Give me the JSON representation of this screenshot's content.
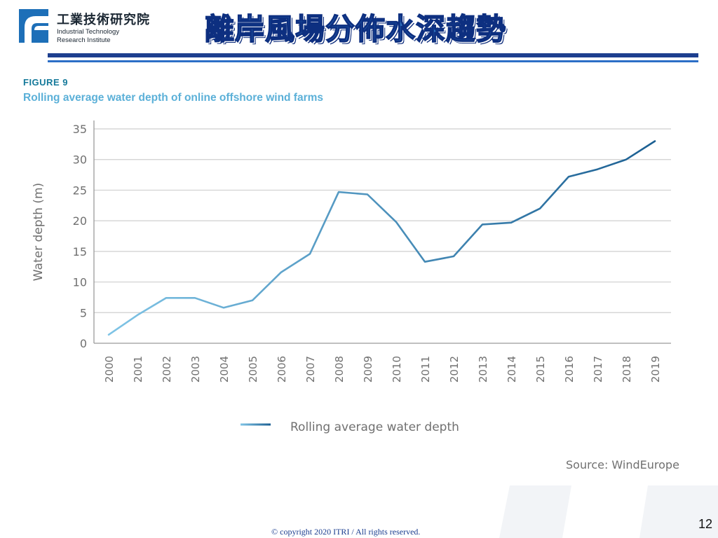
{
  "header": {
    "logo": {
      "name_zh": "工業技術研究院",
      "name_en_line1": "Industrial Technology",
      "name_en_line2": "Research Institute"
    },
    "title": "離岸風場分佈水深趨勢",
    "title_color": "#2f74c0",
    "rule_color": "#1d3f8f"
  },
  "figure": {
    "label": "FIGURE 9",
    "title": "Rolling average water depth of online offshore wind farms",
    "source": "Source: WindEurope"
  },
  "chart_data": {
    "type": "line",
    "x": [
      "2000",
      "2001",
      "2002",
      "2003",
      "2004",
      "2005",
      "2006",
      "2007",
      "2008",
      "2009",
      "2010",
      "2011",
      "2012",
      "2013",
      "2014",
      "2015",
      "2016",
      "2017",
      "2018",
      "2019"
    ],
    "series": [
      {
        "name": "Rolling average water depth",
        "values": [
          1.4,
          4.6,
          7.4,
          7.4,
          5.8,
          7.0,
          11.6,
          14.6,
          24.7,
          24.3,
          19.8,
          13.3,
          14.2,
          19.4,
          19.7,
          22.0,
          27.2,
          28.4,
          30.0,
          33.0
        ],
        "color_start": "#7fc4e6",
        "color_end": "#1b5f92"
      }
    ],
    "xlabel": "",
    "ylabel": "Water depth (m)",
    "ylim": [
      0,
      35
    ],
    "yticks": [
      0,
      5,
      10,
      15,
      20,
      25,
      30,
      35
    ],
    "grid": true,
    "legend_placement": "bottom-center"
  },
  "footer": {
    "copyright": "© copyright 2020 ITRI / All rights reserved.",
    "page_number": "12"
  }
}
